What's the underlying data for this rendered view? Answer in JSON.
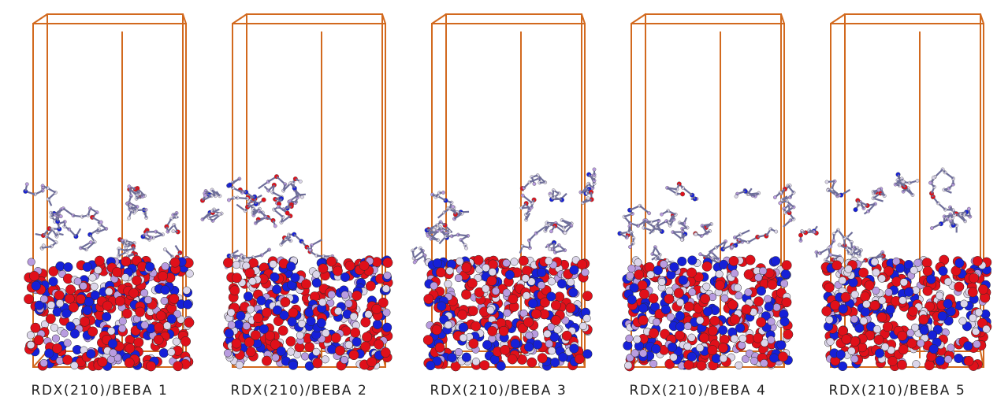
{
  "colors": {
    "cell": "#d2691e",
    "oxygen": "#e0101a",
    "nitrogen": "#1620d8",
    "hydrogen": "#dcd6ea",
    "carbon": "#b99ce0",
    "bond": "#6e6e9a"
  },
  "panels": [
    {
      "label": "RDX(210)/BEBA 1",
      "seed": 11
    },
    {
      "label": "RDX(210)/BEBA 2",
      "seed": 23
    },
    {
      "label": "RDX(210)/BEBA 3",
      "seed": 37
    },
    {
      "label": "RDX(210)/BEBA 4",
      "seed": 41
    },
    {
      "label": "RDX(210)/BEBA 5",
      "seed": 59
    }
  ]
}
